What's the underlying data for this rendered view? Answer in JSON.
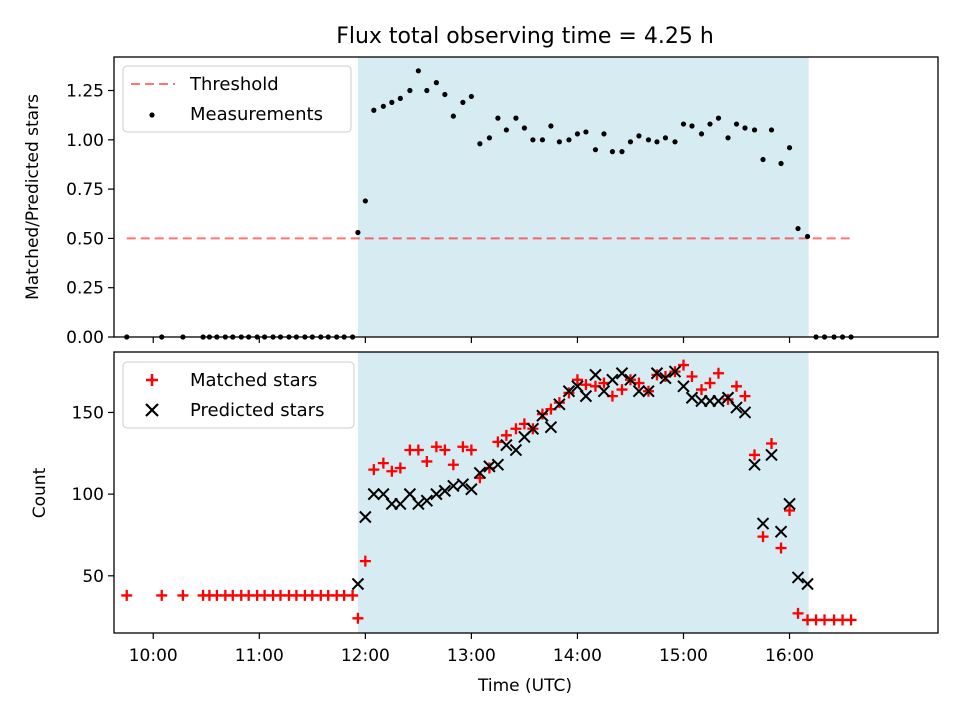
{
  "title": "Flux total observing time = 4.25 h",
  "colors": {
    "shade": "#add8e6",
    "threshold": "#ff0000",
    "measurement": "#000000",
    "matched": "#ff0000",
    "predicted": "#000000"
  },
  "chart_data": [
    {
      "type": "scatter",
      "ylabel": "Matched/Predicted stars",
      "ylim": [
        0,
        1.42
      ],
      "xlim": [
        9.63,
        17.4
      ],
      "yticks": [
        {
          "v": 0,
          "label": "0.00"
        },
        {
          "v": 0.25,
          "label": "0.25"
        },
        {
          "v": 0.5,
          "label": "0.50"
        },
        {
          "v": 0.75,
          "label": "0.75"
        },
        {
          "v": 1.0,
          "label": "1.00"
        },
        {
          "v": 1.25,
          "label": "1.25"
        }
      ],
      "shaded_span": [
        11.93,
        16.18
      ],
      "threshold": {
        "label": "Threshold",
        "value": 0.5,
        "x": [
          9.75,
          16.6
        ]
      },
      "legend": {
        "position": "upper left",
        "entries": [
          "Threshold",
          "Measurements"
        ]
      },
      "series": [
        {
          "name": "Measurements",
          "marker": "dot",
          "points": [
            [
              9.75,
              0
            ],
            [
              10.08,
              0
            ],
            [
              10.28,
              0
            ],
            [
              10.47,
              0
            ],
            [
              10.53,
              0
            ],
            [
              10.6,
              0
            ],
            [
              10.68,
              0
            ],
            [
              10.75,
              0
            ],
            [
              10.83,
              0
            ],
            [
              10.9,
              0
            ],
            [
              10.98,
              0
            ],
            [
              11.05,
              0
            ],
            [
              11.13,
              0
            ],
            [
              11.2,
              0
            ],
            [
              11.28,
              0
            ],
            [
              11.35,
              0
            ],
            [
              11.43,
              0
            ],
            [
              11.5,
              0
            ],
            [
              11.58,
              0
            ],
            [
              11.65,
              0
            ],
            [
              11.73,
              0
            ],
            [
              11.8,
              0
            ],
            [
              11.88,
              0
            ],
            [
              11.93,
              0.53
            ],
            [
              12.0,
              0.69
            ],
            [
              12.08,
              1.15
            ],
            [
              12.17,
              1.17
            ],
            [
              12.25,
              1.19
            ],
            [
              12.33,
              1.21
            ],
            [
              12.42,
              1.25
            ],
            [
              12.5,
              1.35
            ],
            [
              12.58,
              1.25
            ],
            [
              12.67,
              1.29
            ],
            [
              12.75,
              1.23
            ],
            [
              12.83,
              1.12
            ],
            [
              12.92,
              1.19
            ],
            [
              13.0,
              1.22
            ],
            [
              13.08,
              0.98
            ],
            [
              13.17,
              1.01
            ],
            [
              13.25,
              1.11
            ],
            [
              13.33,
              1.05
            ],
            [
              13.42,
              1.11
            ],
            [
              13.5,
              1.06
            ],
            [
              13.58,
              1.0
            ],
            [
              13.67,
              1.0
            ],
            [
              13.75,
              1.07
            ],
            [
              13.83,
              0.99
            ],
            [
              13.92,
              1.0
            ],
            [
              14.0,
              1.03
            ],
            [
              14.08,
              1.04
            ],
            [
              14.17,
              0.95
            ],
            [
              14.25,
              1.03
            ],
            [
              14.33,
              0.94
            ],
            [
              14.42,
              0.94
            ],
            [
              14.5,
              0.99
            ],
            [
              14.58,
              1.02
            ],
            [
              14.67,
              1.0
            ],
            [
              14.75,
              0.99
            ],
            [
              14.83,
              1.01
            ],
            [
              14.92,
              0.99
            ],
            [
              15.0,
              1.08
            ],
            [
              15.08,
              1.07
            ],
            [
              15.17,
              1.03
            ],
            [
              15.25,
              1.08
            ],
            [
              15.33,
              1.11
            ],
            [
              15.42,
              1.01
            ],
            [
              15.5,
              1.08
            ],
            [
              15.58,
              1.06
            ],
            [
              15.67,
              1.05
            ],
            [
              15.75,
              0.9
            ],
            [
              15.83,
              1.05
            ],
            [
              15.92,
              0.88
            ],
            [
              16.0,
              0.96
            ],
            [
              16.08,
              0.55
            ],
            [
              16.17,
              0.51
            ],
            [
              16.25,
              0
            ],
            [
              16.33,
              0
            ],
            [
              16.42,
              0
            ],
            [
              16.5,
              0
            ],
            [
              16.58,
              0
            ]
          ]
        }
      ]
    },
    {
      "type": "scatter",
      "xlabel": "Time (UTC)",
      "ylabel": "Count",
      "ylim": [
        15,
        187
      ],
      "xlim": [
        9.63,
        17.4
      ],
      "xticks": [
        {
          "v": 10,
          "label": "10:00"
        },
        {
          "v": 11,
          "label": "11:00"
        },
        {
          "v": 12,
          "label": "12:00"
        },
        {
          "v": 13,
          "label": "13:00"
        },
        {
          "v": 14,
          "label": "14:00"
        },
        {
          "v": 15,
          "label": "15:00"
        },
        {
          "v": 16,
          "label": "16:00"
        }
      ],
      "yticks": [
        {
          "v": 50,
          "label": "50"
        },
        {
          "v": 100,
          "label": "100"
        },
        {
          "v": 150,
          "label": "150"
        }
      ],
      "shaded_span": [
        11.93,
        16.18
      ],
      "legend": {
        "position": "upper left",
        "entries": [
          "Matched stars",
          "Predicted stars"
        ]
      },
      "series": [
        {
          "name": "Matched stars",
          "marker": "plus",
          "points": [
            [
              9.75,
              38
            ],
            [
              10.08,
              38
            ],
            [
              10.28,
              38
            ],
            [
              10.47,
              38
            ],
            [
              10.53,
              38
            ],
            [
              10.6,
              38
            ],
            [
              10.68,
              38
            ],
            [
              10.75,
              38
            ],
            [
              10.83,
              38
            ],
            [
              10.9,
              38
            ],
            [
              10.98,
              38
            ],
            [
              11.05,
              38
            ],
            [
              11.13,
              38
            ],
            [
              11.2,
              38
            ],
            [
              11.28,
              38
            ],
            [
              11.35,
              38
            ],
            [
              11.43,
              38
            ],
            [
              11.5,
              38
            ],
            [
              11.58,
              38
            ],
            [
              11.65,
              38
            ],
            [
              11.73,
              38
            ],
            [
              11.8,
              38
            ],
            [
              11.88,
              38
            ],
            [
              11.93,
              24
            ],
            [
              12.0,
              59
            ],
            [
              12.08,
              115
            ],
            [
              12.17,
              119
            ],
            [
              12.25,
              114
            ],
            [
              12.33,
              116
            ],
            [
              12.42,
              127
            ],
            [
              12.5,
              127
            ],
            [
              12.58,
              120
            ],
            [
              12.67,
              129
            ],
            [
              12.75,
              127
            ],
            [
              12.83,
              118
            ],
            [
              12.92,
              129
            ],
            [
              13.0,
              127
            ],
            [
              13.08,
              110
            ],
            [
              13.17,
              116
            ],
            [
              13.25,
              132
            ],
            [
              13.33,
              136
            ],
            [
              13.42,
              140
            ],
            [
              13.5,
              143
            ],
            [
              13.58,
              140
            ],
            [
              13.67,
              149
            ],
            [
              13.75,
              152
            ],
            [
              13.83,
              156
            ],
            [
              13.92,
              162
            ],
            [
              14.0,
              170
            ],
            [
              14.08,
              167
            ],
            [
              14.17,
              166
            ],
            [
              14.25,
              168
            ],
            [
              14.33,
              160
            ],
            [
              14.42,
              164
            ],
            [
              14.5,
              170
            ],
            [
              14.58,
              168
            ],
            [
              14.67,
              163
            ],
            [
              14.75,
              173
            ],
            [
              14.83,
              172
            ],
            [
              14.92,
              175
            ],
            [
              15.0,
              179
            ],
            [
              15.08,
              172
            ],
            [
              15.17,
              164
            ],
            [
              15.25,
              168
            ],
            [
              15.33,
              174
            ],
            [
              15.42,
              158
            ],
            [
              15.5,
              166
            ],
            [
              15.58,
              160
            ],
            [
              15.67,
              124
            ],
            [
              15.75,
              74
            ],
            [
              15.83,
              131
            ],
            [
              15.92,
              67
            ],
            [
              16.0,
              90
            ],
            [
              16.08,
              27
            ],
            [
              16.17,
              23
            ],
            [
              16.25,
              23
            ],
            [
              16.33,
              23
            ],
            [
              16.42,
              23
            ],
            [
              16.5,
              23
            ],
            [
              16.58,
              23
            ]
          ]
        },
        {
          "name": "Predicted stars",
          "marker": "x",
          "points": [
            [
              11.93,
              45
            ],
            [
              12.0,
              86
            ],
            [
              12.08,
              100
            ],
            [
              12.17,
              100
            ],
            [
              12.25,
              94
            ],
            [
              12.33,
              94
            ],
            [
              12.42,
              100
            ],
            [
              12.5,
              94
            ],
            [
              12.58,
              96
            ],
            [
              12.67,
              100
            ],
            [
              12.75,
              102
            ],
            [
              12.83,
              105
            ],
            [
              12.92,
              106
            ],
            [
              13.0,
              103
            ],
            [
              13.08,
              113
            ],
            [
              13.17,
              117
            ],
            [
              13.25,
              118
            ],
            [
              13.33,
              130
            ],
            [
              13.42,
              127
            ],
            [
              13.5,
              135
            ],
            [
              13.58,
              140
            ],
            [
              13.67,
              148
            ],
            [
              13.75,
              141
            ],
            [
              13.83,
              155
            ],
            [
              13.92,
              163
            ],
            [
              14.0,
              166
            ],
            [
              14.08,
              160
            ],
            [
              14.17,
              173
            ],
            [
              14.25,
              163
            ],
            [
              14.33,
              170
            ],
            [
              14.42,
              174
            ],
            [
              14.5,
              170
            ],
            [
              14.58,
              163
            ],
            [
              14.67,
              163
            ],
            [
              14.75,
              174
            ],
            [
              14.83,
              171
            ],
            [
              14.92,
              175
            ],
            [
              15.0,
              166
            ],
            [
              15.08,
              159
            ],
            [
              15.17,
              157
            ],
            [
              15.25,
              157
            ],
            [
              15.33,
              157
            ],
            [
              15.42,
              159
            ],
            [
              15.5,
              153
            ],
            [
              15.58,
              150
            ],
            [
              15.67,
              118
            ],
            [
              15.75,
              82
            ],
            [
              15.83,
              124
            ],
            [
              15.92,
              77
            ],
            [
              16.0,
              94
            ],
            [
              16.08,
              49
            ],
            [
              16.17,
              45
            ]
          ]
        }
      ]
    }
  ]
}
